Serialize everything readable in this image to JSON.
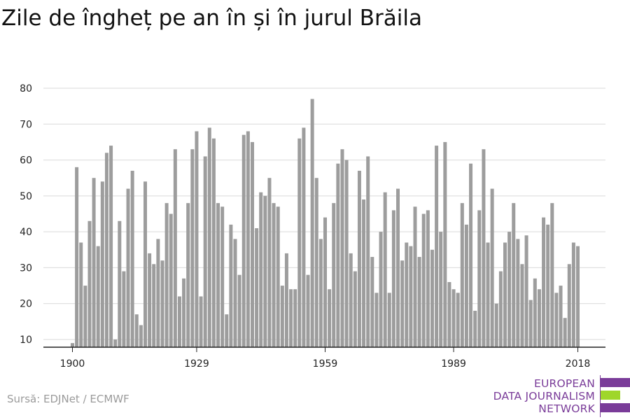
{
  "title": "Zile de îngheț pe an în și în jurul Brăila",
  "source": "Sursă: EDJNet / ECMWF",
  "logo": {
    "lines": [
      "EUROPEAN",
      "DATA JOURNALISM",
      "NETWORK"
    ],
    "colors": {
      "text": "#7a3c99",
      "purple": "#7a3c99",
      "green": "#9fd62b"
    }
  },
  "colors": {
    "bar": "#9d9d9d",
    "grid": "#d9d9d9",
    "axis": "#222222",
    "text": "#222222"
  },
  "chart_data": {
    "type": "bar",
    "title": "Zile de îngheț pe an în și în jurul Brăila",
    "xlabel": "",
    "ylabel": "",
    "x_start": 1900,
    "x_end": 2018,
    "x_ticks": [
      1900,
      1929,
      1959,
      1989,
      2018
    ],
    "y_ticks": [
      10,
      20,
      30,
      40,
      50,
      60,
      70,
      80
    ],
    "ylim": [
      10,
      80
    ],
    "grid": true,
    "values": [
      9,
      58,
      37,
      25,
      43,
      55,
      36,
      54,
      62,
      64,
      10,
      43,
      29,
      52,
      57,
      17,
      14,
      54,
      34,
      31,
      38,
      32,
      48,
      45,
      63,
      22,
      27,
      48,
      63,
      68,
      22,
      61,
      69,
      66,
      48,
      47,
      17,
      42,
      38,
      28,
      67,
      68,
      65,
      41,
      51,
      50,
      55,
      48,
      47,
      25,
      34,
      24,
      24,
      66,
      69,
      28,
      77,
      55,
      38,
      44,
      24,
      48,
      59,
      63,
      60,
      34,
      29,
      57,
      49,
      61,
      33,
      23,
      40,
      51,
      23,
      46,
      52,
      32,
      37,
      36,
      47,
      33,
      45,
      46,
      35,
      64,
      40,
      65,
      26,
      24,
      23,
      48,
      42,
      59,
      18,
      46,
      63,
      37,
      52,
      20,
      29,
      37,
      40,
      48,
      38,
      31,
      39,
      21,
      27,
      24,
      44,
      42,
      48,
      23,
      25,
      16,
      31,
      37,
      36
    ]
  }
}
